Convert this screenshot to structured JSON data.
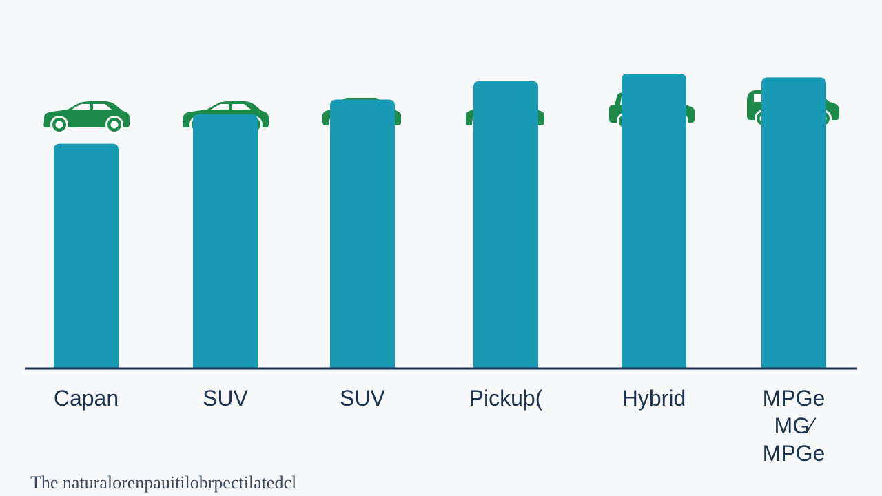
{
  "chart_data": {
    "type": "bar",
    "categories": [
      "Capan",
      "SUV",
      "SUV",
      "Pickuþ(",
      "Hybrid",
      "MPGe\nMG⁄\nMPGe"
    ],
    "values": [
      61,
      69,
      73,
      78,
      80,
      79
    ],
    "ylim": [
      0,
      100
    ],
    "title": "",
    "xlabel": "",
    "ylabel": "",
    "grid": false,
    "legend": "none"
  },
  "icons": [
    "sedan-icon",
    "sedan-icon",
    "hatchback-icon",
    "hatchback-icon",
    "suv-icon",
    "van-icon"
  ],
  "footnote": "The naturalorenpauitilobrpectilatedcl",
  "colors": {
    "bar": "#1a9bb5",
    "axis": "#1b3350",
    "icon": "#1d8a4a",
    "label": "#1b3350",
    "background": "#f8f9fa"
  }
}
